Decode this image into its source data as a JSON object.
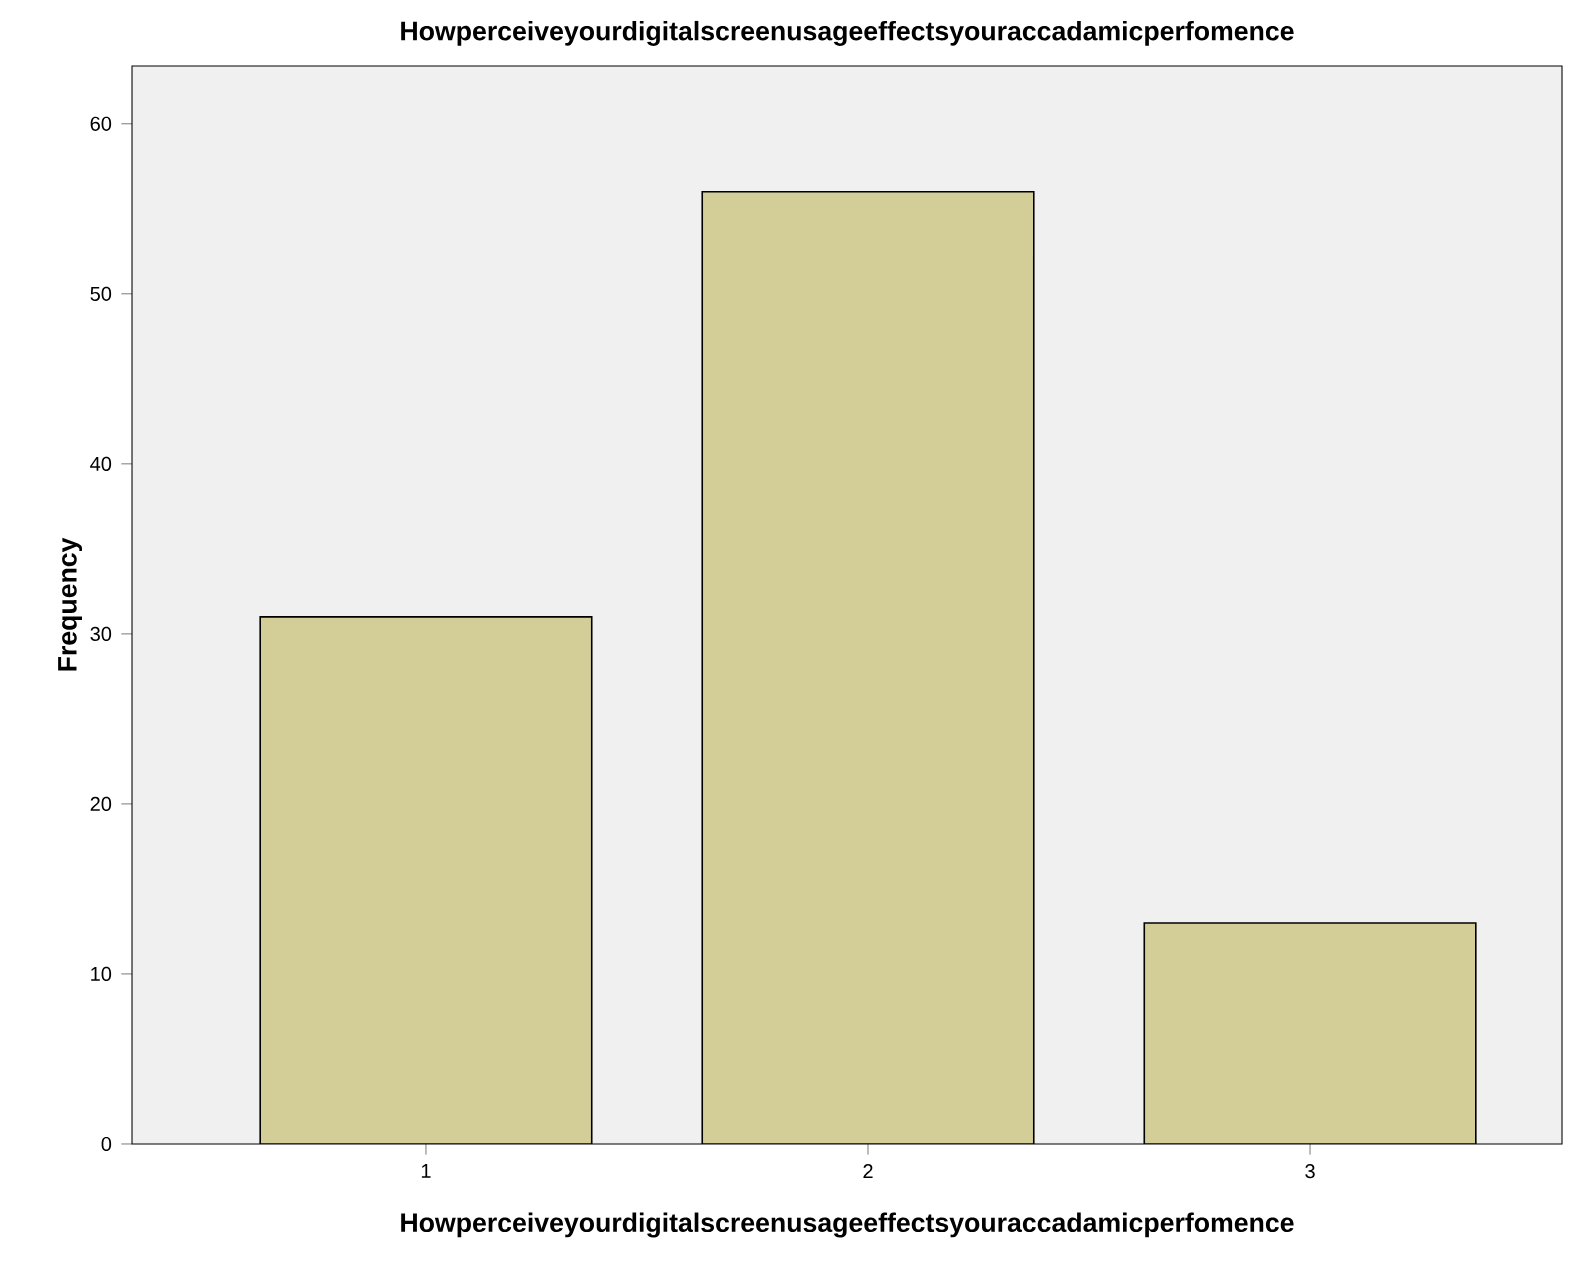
{
  "chart_data": {
    "type": "bar",
    "title": "Howperceiveyourdigitalscreenusageeffectsyouraccadamicperfomence",
    "xlabel": "Howperceiveyourdigitalscreenusageeffectsyouraccadamicperfomence",
    "ylabel": "Frequency",
    "categories": [
      "1",
      "2",
      "3"
    ],
    "values": [
      31,
      56,
      13
    ],
    "color": "#d3ce97",
    "ylim": [
      0,
      63.4
    ],
    "yticks": [
      0,
      10,
      20,
      30,
      40,
      50,
      60
    ],
    "grid": false
  }
}
